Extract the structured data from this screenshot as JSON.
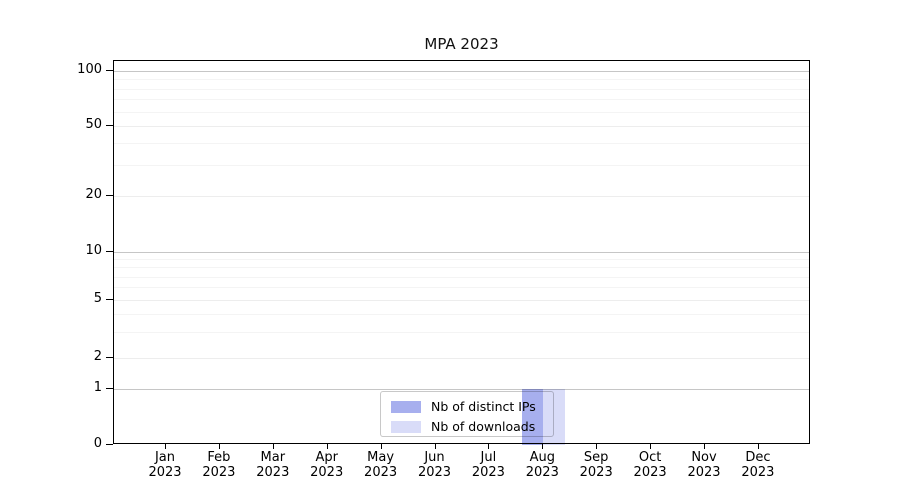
{
  "chart_data": {
    "type": "bar",
    "title": "MPA 2023",
    "x": {
      "months": [
        "Jan",
        "Feb",
        "Mar",
        "Apr",
        "May",
        "Jun",
        "Jul",
        "Aug",
        "Sep",
        "Oct",
        "Nov",
        "Dec"
      ],
      "year": "2023"
    },
    "y_axis": {
      "scale": "symlog-like",
      "ticks": [
        0,
        1,
        2,
        5,
        10,
        20,
        50,
        100
      ]
    },
    "series": [
      {
        "name": "Nb of distinct IPs",
        "fill": "rgba(80,95,222,0.5)",
        "values": [
          0,
          0,
          0,
          0,
          0,
          0,
          0,
          1,
          0,
          0,
          0,
          0
        ]
      },
      {
        "name": "Nb of downloads",
        "fill": "rgba(80,95,222,0.22)",
        "values": [
          0,
          0,
          0,
          0,
          0,
          0,
          0,
          1,
          0,
          0,
          0,
          0
        ]
      }
    ],
    "legend": {
      "position": "lower-center"
    }
  },
  "colors": {
    "background": "#ffffff",
    "axis": "#000000",
    "text": "#000000",
    "grid_decade": "#c6c6c6",
    "grid_major": "#ededed",
    "grid_minor": "#f4f4f4",
    "legend_border": "#c8c8c8",
    "legend_bg": "#ffffff"
  }
}
